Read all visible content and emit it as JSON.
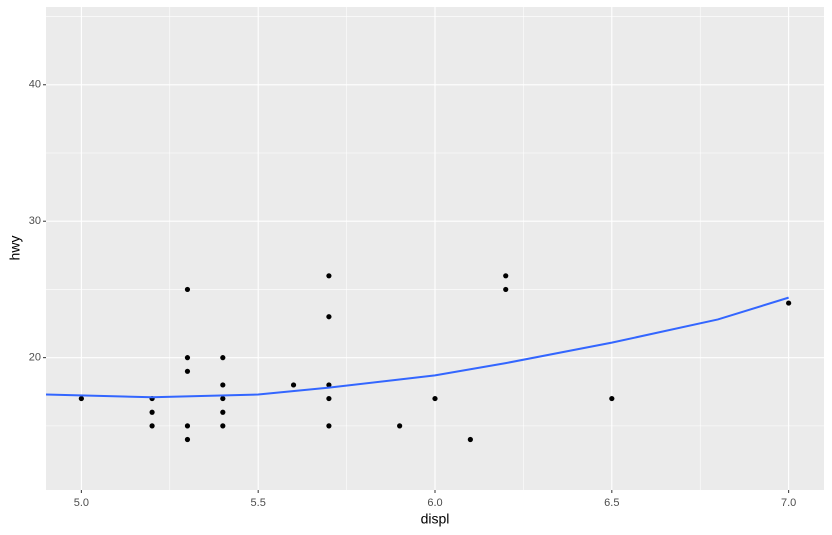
{
  "chart_data": {
    "type": "scatter",
    "x_label": "displ",
    "y_label": "hwy",
    "x": [
      5.0,
      5.2,
      5.2,
      5.2,
      5.3,
      5.3,
      5.3,
      5.3,
      5.3,
      5.4,
      5.4,
      5.4,
      5.4,
      5.4,
      5.6,
      5.7,
      5.7,
      5.7,
      5.7,
      5.7,
      5.9,
      6.0,
      6.1,
      6.2,
      6.2,
      6.5,
      7.0
    ],
    "y": [
      17,
      17,
      16,
      15,
      25,
      20,
      19,
      15,
      14,
      20,
      18,
      17,
      16,
      15,
      18,
      26,
      23,
      18,
      17,
      15,
      15,
      17,
      14,
      26,
      25,
      17,
      24
    ],
    "color": "#000000",
    "smooth": {
      "x": [
        4.9,
        5.2,
        5.5,
        5.7,
        6.0,
        6.2,
        6.5,
        6.8,
        7.0
      ],
      "y": [
        17.3,
        17.1,
        17.3,
        17.8,
        18.7,
        19.6,
        21.1,
        22.8,
        24.4
      ],
      "color": "#3366FF"
    },
    "xlim": [
      4.9,
      7.1
    ],
    "ylim": [
      10.3,
      45.7
    ],
    "xticks": [
      {
        "value": 5,
        "label": "5.0"
      },
      5.5,
      {
        "value": 6,
        "label": "6.0"
      },
      6.5,
      {
        "value": 7,
        "label": "7.0"
      }
    ],
    "yticks": [
      20,
      30,
      40
    ],
    "minor_xticks": [
      5.25,
      5.75,
      6.25,
      6.75
    ],
    "minor_yticks": [
      15,
      25,
      35,
      45
    ],
    "grid": true
  }
}
